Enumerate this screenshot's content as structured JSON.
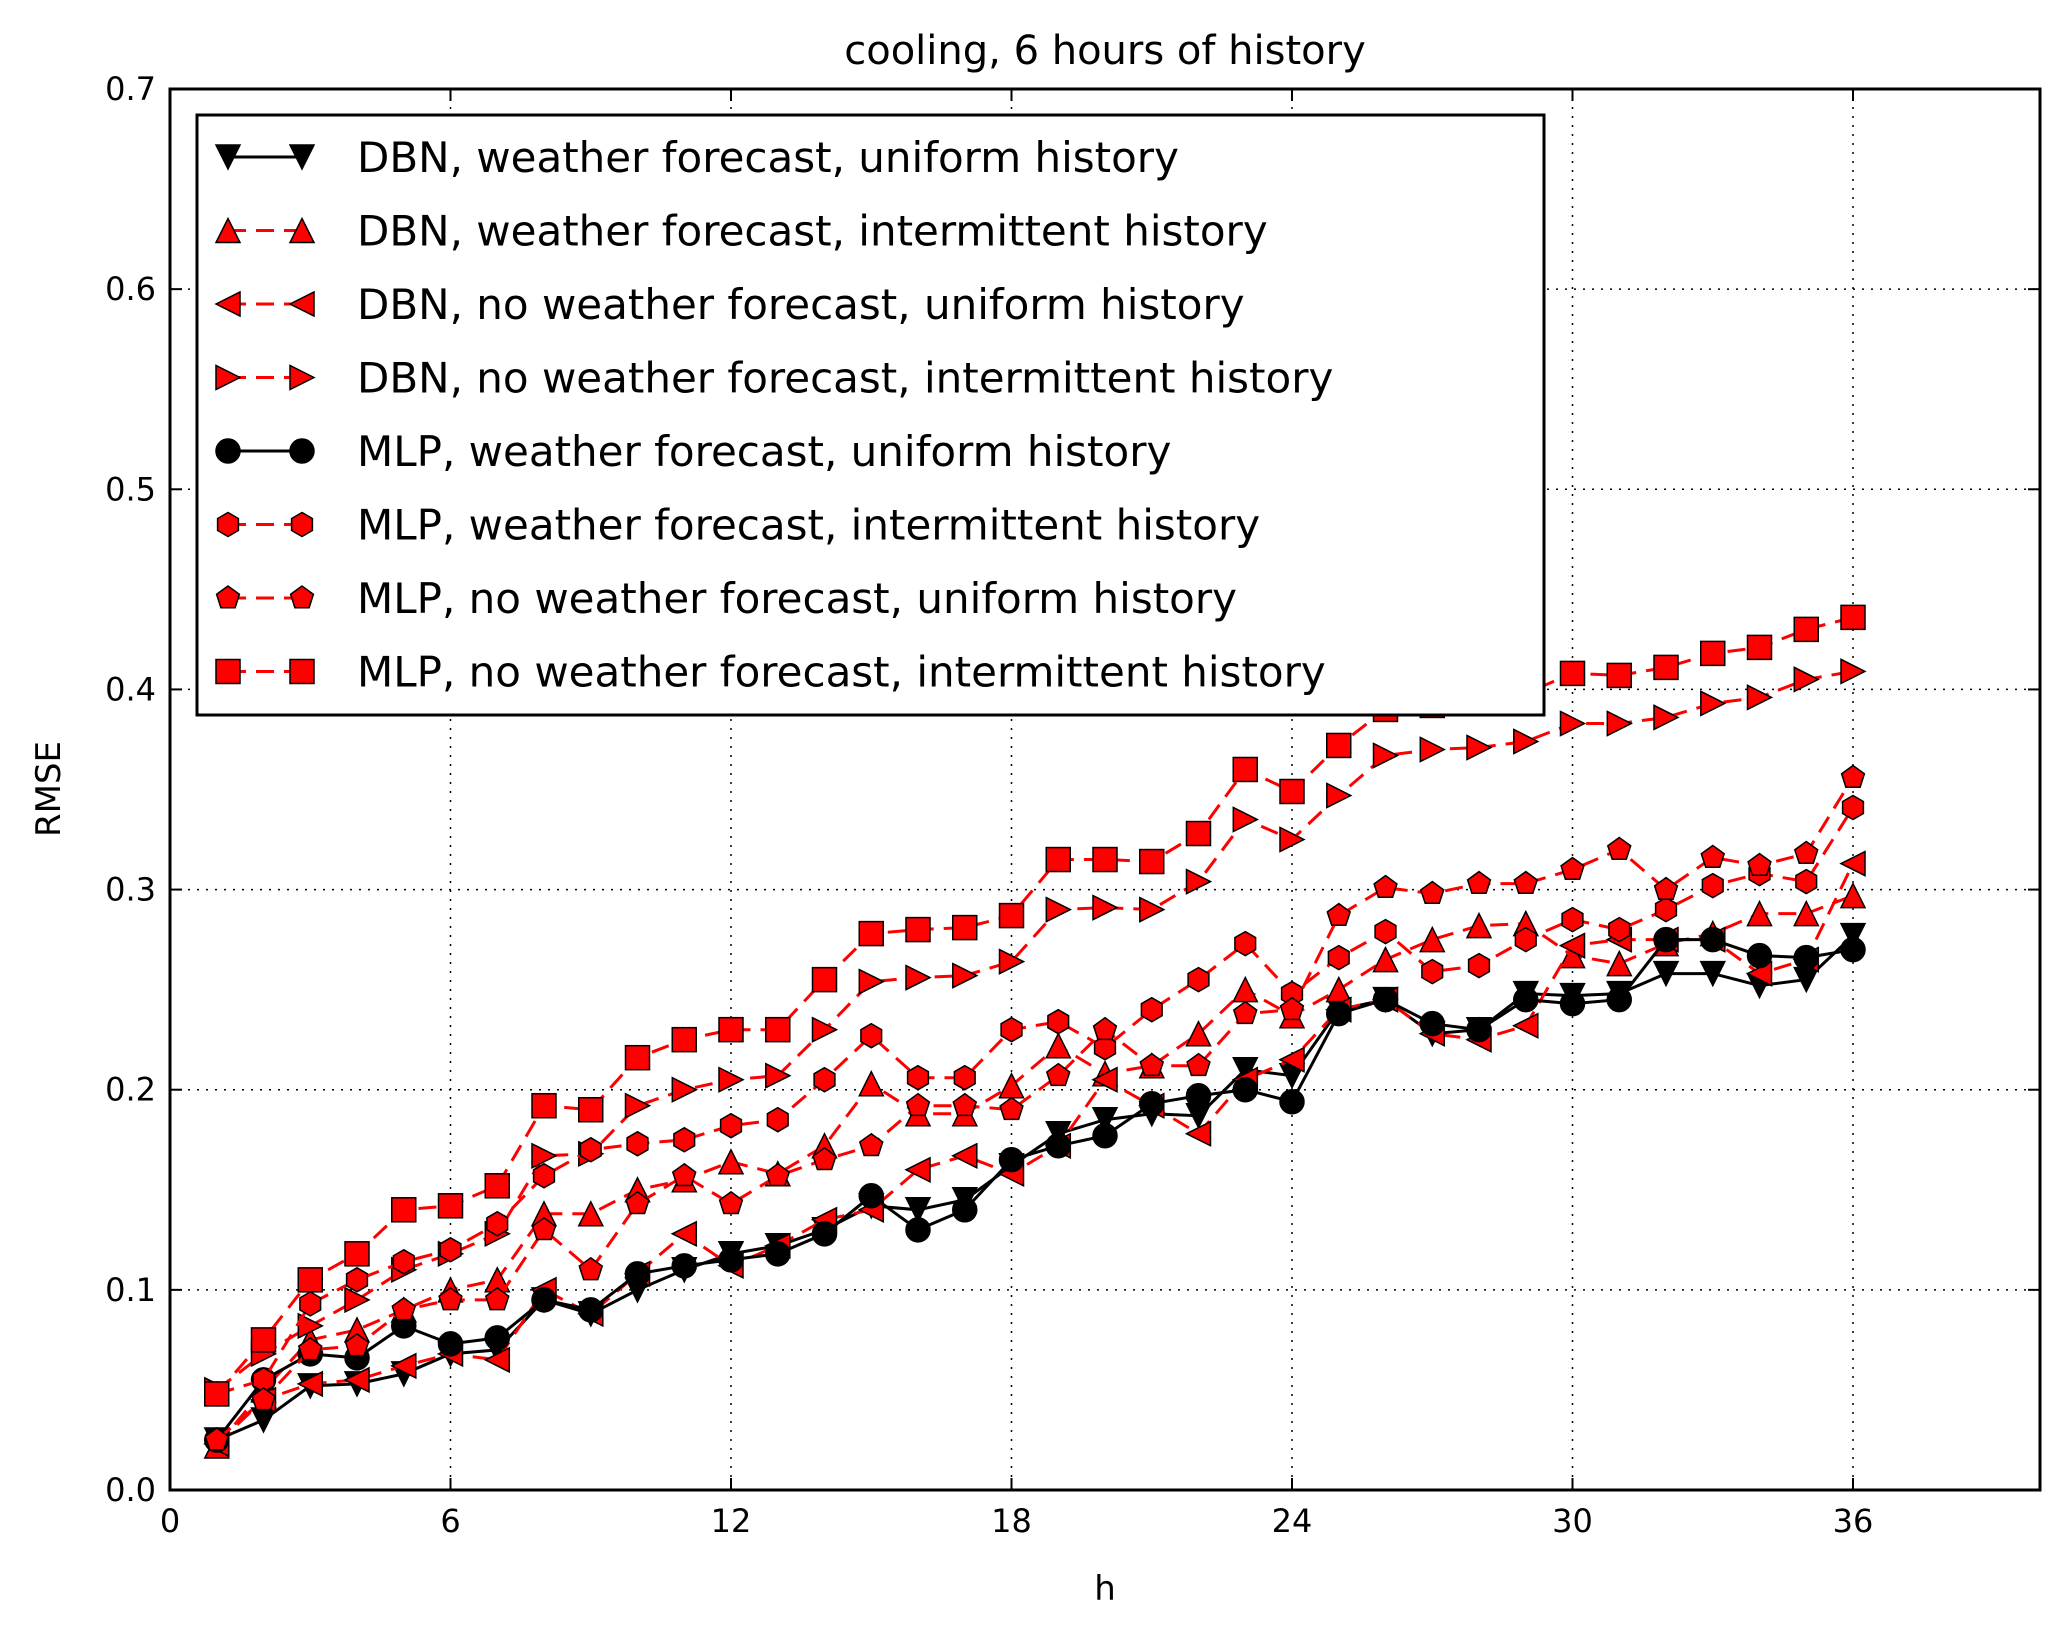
{
  "chart_data": {
    "type": "line",
    "title": "cooling, 6 hours of history",
    "xlabel": "h",
    "ylabel": "RMSE",
    "xlim": [
      0,
      40
    ],
    "ylim": [
      0.0,
      0.7
    ],
    "xticks": [
      0,
      6,
      12,
      18,
      24,
      30,
      36
    ],
    "xtick_labels": [
      "0",
      "6",
      "12",
      "18",
      "24",
      "30",
      "36"
    ],
    "yticks": [
      0.0,
      0.1,
      0.2,
      0.3,
      0.4,
      0.5,
      0.6,
      0.7
    ],
    "ytick_labels": [
      "0.0",
      "0.1",
      "0.2",
      "0.3",
      "0.4",
      "0.5",
      "0.6",
      "0.7"
    ],
    "grid": true,
    "legend_position": "upper-left",
    "x": [
      1,
      2,
      3,
      4,
      5,
      6,
      7,
      8,
      9,
      10,
      11,
      12,
      13,
      14,
      15,
      16,
      17,
      18,
      19,
      20,
      21,
      22,
      23,
      24,
      25,
      26,
      27,
      28,
      29,
      30,
      31,
      32,
      33,
      34,
      35,
      36
    ],
    "series": [
      {
        "name": "DBN, weather forecast, uniform history",
        "color": "#000000",
        "marker_fill": "#000000",
        "line_style": "solid",
        "marker": "triangle-down",
        "values": [
          0.025,
          0.035,
          0.052,
          0.053,
          0.058,
          0.068,
          0.07,
          0.095,
          0.088,
          0.1,
          0.11,
          0.118,
          0.122,
          0.13,
          0.142,
          0.14,
          0.145,
          0.162,
          0.178,
          0.185,
          0.188,
          0.187,
          0.21,
          0.207,
          0.24,
          0.245,
          0.228,
          0.23,
          0.248,
          0.247,
          0.248,
          0.258,
          0.258,
          0.252,
          0.255,
          0.277
        ]
      },
      {
        "name": "DBN, weather forecast, intermittent history",
        "color": "#ff0000",
        "marker_fill": "#ff0000",
        "line_style": "dashed",
        "marker": "triangle-up",
        "values": [
          0.022,
          0.05,
          0.075,
          0.08,
          0.09,
          0.1,
          0.105,
          0.138,
          0.138,
          0.15,
          0.155,
          0.164,
          0.158,
          0.172,
          0.203,
          0.188,
          0.188,
          0.202,
          0.222,
          0.208,
          0.212,
          0.228,
          0.25,
          0.237,
          0.25,
          0.265,
          0.275,
          0.282,
          0.283,
          0.267,
          0.263,
          0.273,
          0.278,
          0.288,
          0.288,
          0.297
        ]
      },
      {
        "name": "DBN, no weather forecast, uniform history",
        "color": "#ff0000",
        "marker_fill": "#ff0000",
        "line_style": "dashed",
        "marker": "triangle-left",
        "values": [
          0.023,
          0.045,
          0.053,
          0.055,
          0.062,
          0.068,
          0.065,
          0.1,
          0.088,
          0.108,
          0.128,
          0.112,
          0.122,
          0.135,
          0.14,
          0.16,
          0.167,
          0.158,
          0.172,
          0.205,
          0.192,
          0.178,
          0.205,
          0.215,
          0.24,
          0.245,
          0.228,
          0.225,
          0.232,
          0.272,
          0.275,
          0.275,
          0.275,
          0.258,
          0.265,
          0.313
        ]
      },
      {
        "name": "DBN, no weather forecast, intermittent history",
        "color": "#ff0000",
        "marker_fill": "#ff0000",
        "line_style": "dashed",
        "marker": "triangle-right",
        "values": [
          0.05,
          0.068,
          0.082,
          0.095,
          0.11,
          0.118,
          0.128,
          0.167,
          0.168,
          0.192,
          0.2,
          0.205,
          0.207,
          0.23,
          0.254,
          0.256,
          0.257,
          0.264,
          0.29,
          0.291,
          0.29,
          0.304,
          0.335,
          0.325,
          0.347,
          0.367,
          0.37,
          0.371,
          0.374,
          0.383,
          0.383,
          0.386,
          0.393,
          0.396,
          0.405,
          0.409
        ]
      },
      {
        "name": "MLP, weather forecast, uniform history",
        "color": "#000000",
        "marker_fill": "#000000",
        "line_style": "solid",
        "marker": "circle",
        "values": [
          0.025,
          0.055,
          0.068,
          0.066,
          0.082,
          0.073,
          0.076,
          0.095,
          0.09,
          0.108,
          0.112,
          0.115,
          0.118,
          0.128,
          0.147,
          0.13,
          0.14,
          0.165,
          0.172,
          0.177,
          0.193,
          0.197,
          0.2,
          0.194,
          0.238,
          0.245,
          0.233,
          0.23,
          0.245,
          0.243,
          0.245,
          0.275,
          0.275,
          0.267,
          0.266,
          0.27
        ]
      },
      {
        "name": "MLP, weather forecast, intermittent history",
        "color": "#ff0000",
        "marker_fill": "#ff0000",
        "line_style": "dashed",
        "marker": "hexagon",
        "values": [
          0.048,
          0.055,
          0.093,
          0.105,
          0.114,
          0.12,
          0.133,
          0.157,
          0.17,
          0.173,
          0.175,
          0.182,
          0.185,
          0.205,
          0.227,
          0.206,
          0.206,
          0.23,
          0.234,
          0.221,
          0.24,
          0.255,
          0.273,
          0.248,
          0.266,
          0.279,
          0.259,
          0.262,
          0.275,
          0.285,
          0.28,
          0.29,
          0.302,
          0.308,
          0.304,
          0.341
        ]
      },
      {
        "name": "MLP, no weather forecast, uniform history",
        "color": "#ff0000",
        "marker_fill": "#ff0000",
        "line_style": "dashed",
        "marker": "pentagon",
        "values": [
          0.025,
          0.045,
          0.07,
          0.072,
          0.09,
          0.095,
          0.095,
          0.13,
          0.11,
          0.143,
          0.157,
          0.143,
          0.157,
          0.165,
          0.172,
          0.192,
          0.192,
          0.19,
          0.207,
          0.23,
          0.212,
          0.212,
          0.238,
          0.24,
          0.287,
          0.301,
          0.298,
          0.303,
          0.303,
          0.31,
          0.32,
          0.3,
          0.316,
          0.312,
          0.318,
          0.356
        ]
      },
      {
        "name": "MLP, no weather forecast, intermittent history",
        "color": "#ff0000",
        "marker_fill": "#ff0000",
        "line_style": "dashed",
        "marker": "square",
        "values": [
          0.048,
          0.075,
          0.105,
          0.118,
          0.14,
          0.142,
          0.152,
          0.192,
          0.19,
          0.216,
          0.225,
          0.23,
          0.23,
          0.255,
          0.278,
          0.28,
          0.281,
          0.287,
          0.315,
          0.315,
          0.314,
          0.328,
          0.36,
          0.349,
          0.372,
          0.39,
          0.392,
          0.395,
          0.398,
          0.408,
          0.407,
          0.411,
          0.418,
          0.421,
          0.43,
          0.436
        ]
      }
    ]
  }
}
